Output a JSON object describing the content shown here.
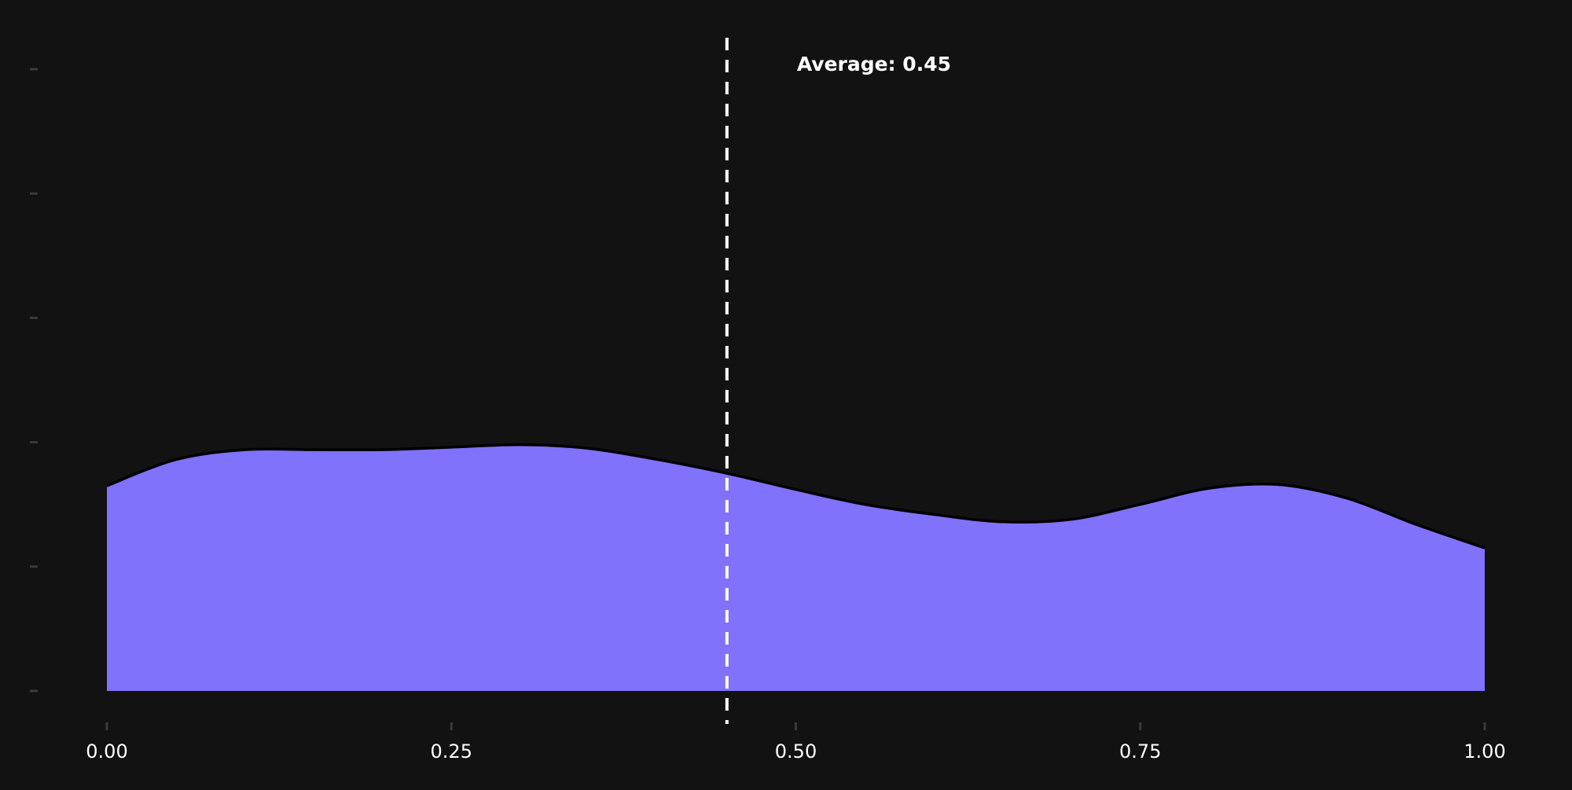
{
  "colors": {
    "background": "#121212",
    "fill": "#8072fb",
    "outline": "#000000",
    "reference_line": "#ffffff",
    "text": "#ffffff",
    "tick": "#3a3a3a"
  },
  "chart_data": {
    "type": "area",
    "title": "",
    "xlabel": "",
    "ylabel": "",
    "xlim": [
      0,
      1
    ],
    "ylim": [
      0,
      5
    ],
    "x_ticks": [
      0,
      0.25,
      0.5,
      0.75,
      1
    ],
    "x_tick_labels": [
      "0.00",
      "0.25",
      "0.50",
      "0.75",
      "1.00"
    ],
    "y_ticks": [
      0,
      1,
      2,
      3,
      4,
      5
    ],
    "y_tick_labels_shown": false,
    "grid": false,
    "legend": "none",
    "series": [
      {
        "x": [
          0,
          0.05,
          0.1,
          0.15,
          0.2,
          0.25,
          0.3,
          0.35,
          0.4,
          0.45,
          0.5,
          0.55,
          0.6,
          0.65,
          0.7,
          0.75,
          0.8,
          0.85,
          0.9,
          0.95,
          1
        ],
        "y": [
          1.65,
          1.86,
          1.94,
          1.94,
          1.94,
          1.96,
          1.98,
          1.95,
          1.86,
          1.75,
          1.62,
          1.5,
          1.42,
          1.36,
          1.38,
          1.5,
          1.63,
          1.66,
          1.55,
          1.34,
          1.15
        ]
      }
    ],
    "reference_line": {
      "x": 0.45,
      "style": "dashed",
      "label": "Average: 0.45"
    }
  }
}
